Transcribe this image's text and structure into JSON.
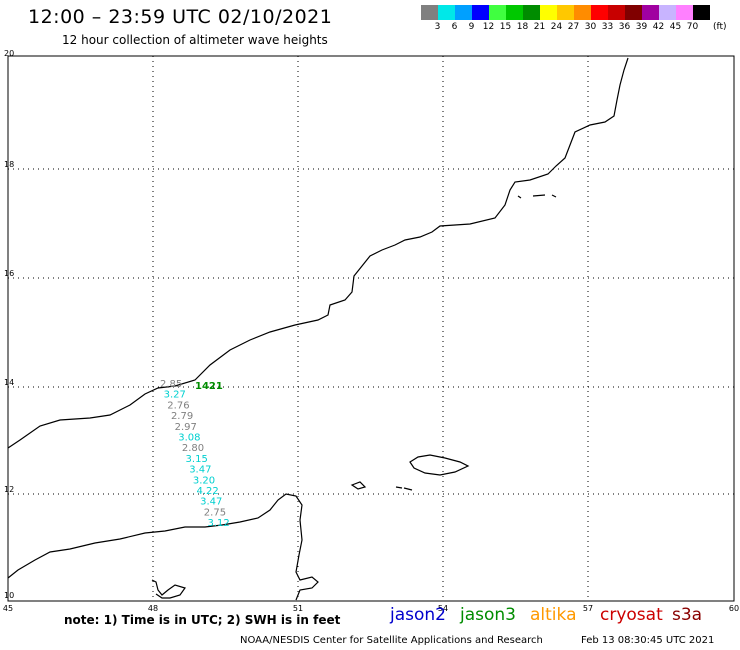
{
  "title": "12:00 – 23:59 UTC 02/10/2021",
  "subtitle": "12 hour collection of altimeter wave heights",
  "legend": {
    "unit": "(ft)",
    "items": [
      {
        "label": "3",
        "color": "#808080"
      },
      {
        "label": "6",
        "color": "#00e8e8"
      },
      {
        "label": "9",
        "color": "#00a0ff"
      },
      {
        "label": "12",
        "color": "#0000ff"
      },
      {
        "label": "15",
        "color": "#40ff40"
      },
      {
        "label": "18",
        "color": "#00c800"
      },
      {
        "label": "21",
        "color": "#008c00"
      },
      {
        "label": "24",
        "color": "#ffff00"
      },
      {
        "label": "27",
        "color": "#ffc800"
      },
      {
        "label": "30",
        "color": "#ff8c00"
      },
      {
        "label": "33",
        "color": "#ff0000"
      },
      {
        "label": "36",
        "color": "#c80000"
      },
      {
        "label": "39",
        "color": "#800000"
      },
      {
        "label": "42",
        "color": "#a000a0"
      },
      {
        "label": "45",
        "color": "#c8b4ff"
      },
      {
        "label": "70",
        "color": "#ff80ff"
      },
      {
        "label": "",
        "color": "#000000"
      }
    ]
  },
  "axes": {
    "x_ticks": [
      "45",
      "48",
      "51",
      "54",
      "57",
      "60"
    ],
    "y_ticks": [
      "20",
      "18",
      "16",
      "14",
      "12",
      "10"
    ]
  },
  "observations": {
    "pass_label": "1421",
    "pass_label_color": "#008c00",
    "points": [
      {
        "value": "2.85",
        "color": "#808080"
      },
      {
        "value": "3.27",
        "color": "#00d0d0"
      },
      {
        "value": "2.76",
        "color": "#808080"
      },
      {
        "value": "2.79",
        "color": "#808080"
      },
      {
        "value": "2.97",
        "color": "#808080"
      },
      {
        "value": "3.08",
        "color": "#00d0d0"
      },
      {
        "value": "2.80",
        "color": "#808080"
      },
      {
        "value": "3.15",
        "color": "#00d0d0"
      },
      {
        "value": "3.47",
        "color": "#00d0d0"
      },
      {
        "value": "3.20",
        "color": "#00d0d0"
      },
      {
        "value": "4.22",
        "color": "#00d0d0"
      },
      {
        "value": "3.47",
        "color": "#00d0d0"
      },
      {
        "value": "2.75",
        "color": "#808080"
      },
      {
        "value": "3.12",
        "color": "#00d0d0"
      }
    ]
  },
  "note": "note: 1) Time is in UTC; 2) SWH is in feet",
  "satellites": [
    {
      "name": "jason2",
      "color": "#0000cc"
    },
    {
      "name": "jason3",
      "color": "#008c00"
    },
    {
      "name": "altika",
      "color": "#ff9900"
    },
    {
      "name": "cryosat",
      "color": "#cc0000"
    },
    {
      "name": "s3a",
      "color": "#880000"
    }
  ],
  "credit": "NOAA/NESDIS Center for Satellite Applications and Research",
  "timestamp": "Feb 13 08:30:45 UTC 2021"
}
